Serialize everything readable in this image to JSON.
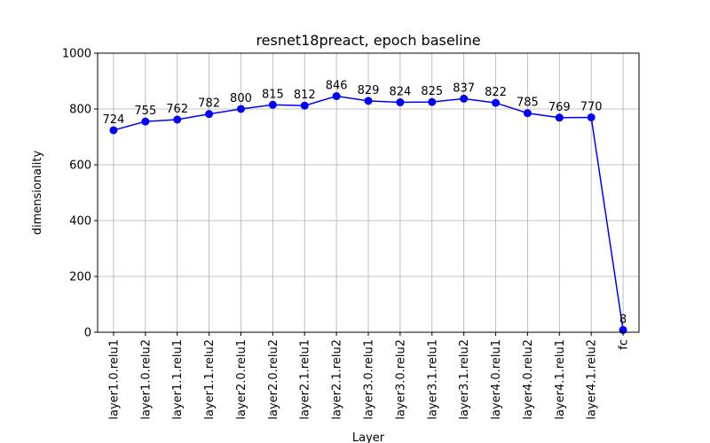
{
  "chart_data": {
    "type": "line",
    "title": "resnet18preact, epoch baseline",
    "xlabel": "Layer",
    "ylabel": "dimensionality",
    "categories": [
      "layer1.0.relu1",
      "layer1.0.relu2",
      "layer1.1.relu1",
      "layer1.1.relu2",
      "layer2.0.relu1",
      "layer2.0.relu2",
      "layer2.1.relu1",
      "layer2.1.relu2",
      "layer3.0.relu1",
      "layer3.0.relu2",
      "layer3.1.relu1",
      "layer3.1.relu2",
      "layer4.0.relu1",
      "layer4.0.relu2",
      "layer4.1.relu1",
      "layer4.1.relu2",
      "fc"
    ],
    "values": [
      724,
      755,
      762,
      782,
      800,
      815,
      812,
      846,
      829,
      824,
      825,
      837,
      822,
      785,
      769,
      770,
      8
    ],
    "ylim": [
      0,
      1000
    ],
    "yticks": [
      0,
      200,
      400,
      600,
      800,
      1000
    ],
    "grid": true,
    "line_color": "#0000ff",
    "marker_color": "#0000ff"
  }
}
